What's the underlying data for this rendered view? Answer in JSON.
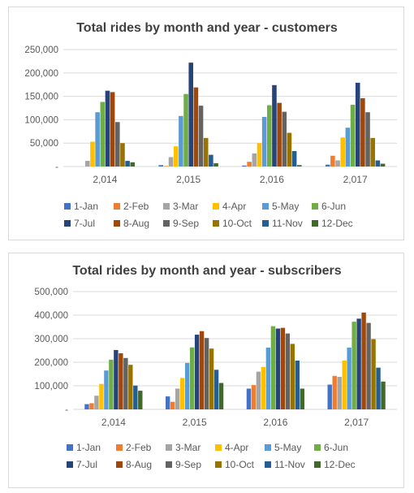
{
  "palette": [
    "#4472C4",
    "#ED7D31",
    "#A5A5A5",
    "#FFC000",
    "#5B9BD5",
    "#70AD47",
    "#264478",
    "#9E480E",
    "#636363",
    "#997300",
    "#255E91",
    "#43682B"
  ],
  "axis_color": "#595959",
  "grid_color": "#d9d9d9",
  "chart_data": [
    {
      "type": "bar",
      "title": "Total rides by month and year - customers",
      "xlabel": "",
      "ylabel": "",
      "categories": [
        "2,014",
        "2,015",
        "2,016",
        "2,017"
      ],
      "yticks": [
        "-",
        "50,000",
        "100,000",
        "150,000",
        "200,000",
        "250,000"
      ],
      "ylim": [
        0,
        250000
      ],
      "grid": true,
      "legend_position": "bottom",
      "series": [
        {
          "name": "1-Jan",
          "values": [
            null,
            3000,
            2000,
            4000
          ]
        },
        {
          "name": "2-Feb",
          "values": [
            null,
            1000,
            10000,
            23000
          ]
        },
        {
          "name": "3-Mar",
          "values": [
            12000,
            20000,
            28000,
            13000
          ]
        },
        {
          "name": "4-Apr",
          "values": [
            53000,
            43000,
            50000,
            62000
          ]
        },
        {
          "name": "5-May",
          "values": [
            116000,
            108000,
            106000,
            83000
          ]
        },
        {
          "name": "6-Jun",
          "values": [
            138000,
            155000,
            131000,
            132000
          ]
        },
        {
          "name": "7-Jul",
          "values": [
            162000,
            222000,
            174000,
            179000
          ]
        },
        {
          "name": "8-Aug",
          "values": [
            159000,
            169000,
            136000,
            146000
          ]
        },
        {
          "name": "9-Sep",
          "values": [
            95000,
            130000,
            117000,
            116000
          ]
        },
        {
          "name": "10-Oct",
          "values": [
            50000,
            61000,
            72000,
            61000
          ]
        },
        {
          "name": "11-Nov",
          "values": [
            12000,
            25000,
            33000,
            13000
          ]
        },
        {
          "name": "12-Dec",
          "values": [
            9000,
            7000,
            3000,
            6000
          ]
        }
      ]
    },
    {
      "type": "bar",
      "title": "Total rides by month and year - subscribers",
      "xlabel": "",
      "ylabel": "",
      "categories": [
        "2,014",
        "2,015",
        "2,016",
        "2,017"
      ],
      "yticks": [
        "-",
        "100,000",
        "200,000",
        "300,000",
        "400,000",
        "500,000"
      ],
      "ylim": [
        0,
        500000
      ],
      "grid": true,
      "legend_position": "bottom",
      "series": [
        {
          "name": "1-Jan",
          "values": [
            22000,
            55000,
            88000,
            105000
          ]
        },
        {
          "name": "2-Feb",
          "values": [
            26000,
            32000,
            103000,
            142000
          ]
        },
        {
          "name": "3-Mar",
          "values": [
            58000,
            88000,
            160000,
            138000
          ]
        },
        {
          "name": "4-Apr",
          "values": [
            108000,
            133000,
            180000,
            207000
          ]
        },
        {
          "name": "5-May",
          "values": [
            165000,
            197000,
            262000,
            262000
          ]
        },
        {
          "name": "6-Jun",
          "values": [
            211000,
            263000,
            353000,
            372000
          ]
        },
        {
          "name": "7-Jul",
          "values": [
            252000,
            317000,
            343000,
            385000
          ]
        },
        {
          "name": "8-Aug",
          "values": [
            238000,
            332000,
            346000,
            411000
          ]
        },
        {
          "name": "9-Sep",
          "values": [
            218000,
            303000,
            322000,
            367000
          ]
        },
        {
          "name": "10-Oct",
          "values": [
            189000,
            258000,
            278000,
            298000
          ]
        },
        {
          "name": "11-Nov",
          "values": [
            101000,
            168000,
            207000,
            177000
          ]
        },
        {
          "name": "12-Dec",
          "values": [
            79000,
            112000,
            88000,
            118000
          ]
        }
      ]
    }
  ]
}
